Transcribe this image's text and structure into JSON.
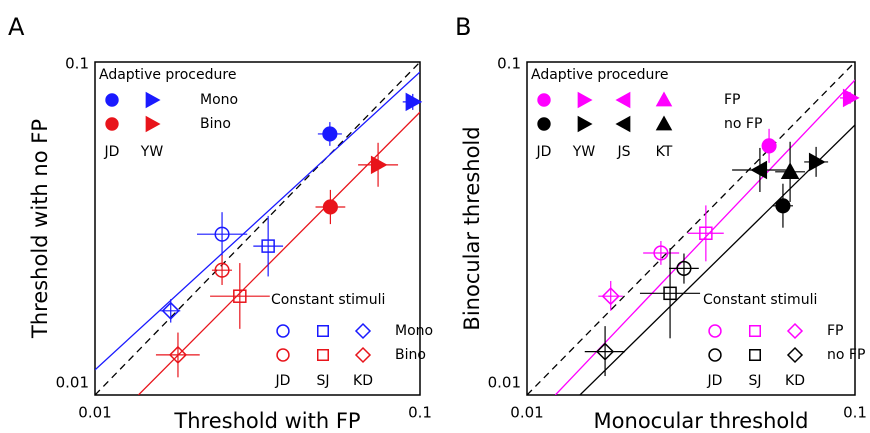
{
  "chart_data": [
    {
      "type": "scatter",
      "panel_label": "A",
      "xlabel": "Threshold with FP",
      "ylabel": "Threshold with no FP",
      "log_x": true,
      "log_y": true,
      "xlim": [
        0.01,
        0.1
      ],
      "ylim": [
        0.01,
        0.1
      ],
      "xticks": [
        0.01,
        0.1
      ],
      "yticks": [
        0.01,
        0.1
      ],
      "lines": [
        {
          "x": [
            0.01,
            0.1
          ],
          "y": [
            0.01,
            0.1
          ],
          "color": "#000000",
          "dashed": true
        },
        {
          "x": [
            0.01,
            0.1
          ],
          "y": [
            0.0119,
            0.0933
          ],
          "color": "#1a1aff",
          "dashed": false
        },
        {
          "x": [
            0.0136,
            0.1
          ],
          "y": [
            0.01,
            0.0707
          ],
          "color": "#e8141b",
          "dashed": false
        }
      ],
      "points": [
        {
          "x": 0.0528,
          "y": 0.0608,
          "xerr": [
            0.0485,
            0.0575
          ],
          "yerr": [
            0.056,
            0.066
          ],
          "color": "#1a1aff",
          "marker": "circle",
          "filled": true
        },
        {
          "x": 0.095,
          "y": 0.0759,
          "xerr": [
            0.0885,
            0.1
          ],
          "yerr": [
            0.0718,
            0.0802
          ],
          "color": "#1a1aff",
          "marker": "triangle-right",
          "filled": true
        },
        {
          "x": 0.053,
          "y": 0.0367,
          "xerr": [
            0.0477,
            0.0589
          ],
          "yerr": [
            0.0326,
            0.0413
          ],
          "color": "#e8141b",
          "marker": "circle",
          "filled": true
        },
        {
          "x": 0.0743,
          "y": 0.0491,
          "xerr": [
            0.0645,
            0.0856
          ],
          "yerr": [
            0.0422,
            0.0572
          ],
          "color": "#e8141b",
          "marker": "triangle-right",
          "filled": true
        },
        {
          "x": 0.0246,
          "y": 0.0304,
          "xerr": [
            0.0206,
            0.0294
          ],
          "yerr": [
            0.0261,
            0.0354
          ],
          "color": "#1a1aff",
          "marker": "circle",
          "filled": false
        },
        {
          "x": 0.0341,
          "y": 0.028,
          "xerr": [
            0.0307,
            0.0379
          ],
          "yerr": [
            0.0227,
            0.0345
          ],
          "color": "#1a1aff",
          "marker": "square",
          "filled": false
        },
        {
          "x": 0.0171,
          "y": 0.0179,
          "xerr": [
            0.0159,
            0.0183
          ],
          "yerr": [
            0.0165,
            0.0194
          ],
          "color": "#1a1aff",
          "marker": "diamond",
          "filled": false
        },
        {
          "x": 0.0246,
          "y": 0.0237,
          "xerr": [
            0.0229,
            0.0264
          ],
          "yerr": [
            0.0214,
            0.0263
          ],
          "color": "#e8141b",
          "marker": "circle",
          "filled": false
        },
        {
          "x": 0.0279,
          "y": 0.0198,
          "xerr": [
            0.0226,
            0.0345
          ],
          "yerr": [
            0.0158,
            0.0249
          ],
          "color": "#e8141b",
          "marker": "square",
          "filled": false
        },
        {
          "x": 0.018,
          "y": 0.0132,
          "xerr": [
            0.0154,
            0.021
          ],
          "yerr": [
            0.0113,
            0.0154
          ],
          "color": "#e8141b",
          "marker": "diamond",
          "filled": false
        }
      ],
      "adaptive_legend": {
        "title": "Adaptive procedure",
        "labels": [
          "Mono",
          "Bino"
        ],
        "colors": [
          "#1a1aff",
          "#e8141b"
        ],
        "subjects": [
          "JD",
          "YW"
        ],
        "markers": [
          "circle",
          "triangle-right"
        ],
        "filled": true
      },
      "constant_legend": {
        "title": "Constant stimuli",
        "labels": [
          "Mono",
          "Bino"
        ],
        "colors": [
          "#1a1aff",
          "#e8141b"
        ],
        "subjects": [
          "JD",
          "SJ",
          "KD"
        ],
        "markers": [
          "circle",
          "square",
          "diamond"
        ],
        "filled": false
      }
    },
    {
      "type": "scatter",
      "panel_label": "B",
      "xlabel": "Monocular threshold",
      "ylabel": "Binocular threshold",
      "log_x": true,
      "log_y": true,
      "xlim": [
        0.01,
        0.1
      ],
      "ylim": [
        0.01,
        0.1
      ],
      "xticks": [
        0.01,
        0.1
      ],
      "yticks": [
        0.01,
        0.1
      ],
      "lines": [
        {
          "x": [
            0.01,
            0.1
          ],
          "y": [
            0.01,
            0.1
          ],
          "color": "#000000",
          "dashed": true
        },
        {
          "x": [
            0.0122,
            0.1
          ],
          "y": [
            0.01,
            0.0883
          ],
          "color": "#ff00ff",
          "dashed": false
        },
        {
          "x": [
            0.0145,
            0.1
          ],
          "y": [
            0.01,
            0.0647
          ],
          "color": "#000000",
          "dashed": false
        }
      ],
      "points": [
        {
          "x": 0.0547,
          "y": 0.056,
          "xerr": [
            0.0532,
            0.0562
          ],
          "yerr": [
            0.0498,
            0.063
          ],
          "color": "#ff00ff",
          "marker": "circle",
          "filled": true
        },
        {
          "x": 0.0966,
          "y": 0.078,
          "xerr": [
            0.09,
            0.1
          ],
          "yerr": [
            0.0749,
            0.0813
          ],
          "color": "#ff00ff",
          "marker": "triangle-right",
          "filled": true
        },
        {
          "x": 0.0603,
          "y": 0.037,
          "xerr": [
            0.0562,
            0.0647
          ],
          "yerr": [
            0.0318,
            0.0431
          ],
          "color": "#000000",
          "marker": "circle",
          "filled": true
        },
        {
          "x": 0.0761,
          "y": 0.0501,
          "xerr": [
            0.07,
            0.0828
          ],
          "yerr": [
            0.0452,
            0.0556
          ],
          "color": "#000000",
          "marker": "triangle-right",
          "filled": true
        },
        {
          "x": 0.0513,
          "y": 0.0474,
          "xerr": [
            0.0422,
            0.0624
          ],
          "yerr": [
            0.0407,
            0.0552
          ],
          "color": "#000000",
          "marker": "triangle-left",
          "filled": true
        },
        {
          "x": 0.0634,
          "y": 0.0468,
          "xerr": [
            0.0571,
            0.0704
          ],
          "yerr": [
            0.038,
            0.0576
          ],
          "color": "#000000",
          "marker": "triangle-up",
          "filled": true
        },
        {
          "x": 0.0256,
          "y": 0.0267,
          "xerr": [
            0.0226,
            0.0291
          ],
          "yerr": [
            0.0246,
            0.029
          ],
          "color": "#ff00ff",
          "marker": "circle",
          "filled": false
        },
        {
          "x": 0.0351,
          "y": 0.0306,
          "xerr": [
            0.0309,
            0.0398
          ],
          "yerr": [
            0.0252,
            0.0371
          ],
          "color": "#ff00ff",
          "marker": "square",
          "filled": false
        },
        {
          "x": 0.018,
          "y": 0.0198,
          "xerr": [
            0.0165,
            0.0196
          ],
          "yerr": [
            0.0179,
            0.022
          ],
          "color": "#ff00ff",
          "marker": "diamond",
          "filled": false
        },
        {
          "x": 0.0301,
          "y": 0.024,
          "xerr": [
            0.0271,
            0.0334
          ],
          "yerr": [
            0.0216,
            0.0266
          ],
          "color": "#000000",
          "marker": "circle",
          "filled": false
        },
        {
          "x": 0.0273,
          "y": 0.0202,
          "xerr": [
            0.0221,
            0.0337
          ],
          "yerr": [
            0.0148,
            0.0276
          ],
          "color": "#000000",
          "marker": "square",
          "filled": false
        },
        {
          "x": 0.0173,
          "y": 0.0135,
          "xerr": [
            0.015,
            0.0199
          ],
          "yerr": [
            0.0114,
            0.0161
          ],
          "color": "#000000",
          "marker": "diamond",
          "filled": false
        }
      ],
      "adaptive_legend": {
        "title": "Adaptive procedure",
        "labels": [
          "FP",
          "no FP"
        ],
        "colors": [
          "#ff00ff",
          "#000000"
        ],
        "subjects": [
          "JD",
          "YW",
          "JS",
          "KT"
        ],
        "markers": [
          "circle",
          "triangle-right",
          "triangle-left",
          "triangle-up"
        ],
        "filled": true
      },
      "constant_legend": {
        "title": "Constant stimuli",
        "labels": [
          "FP",
          "no FP"
        ],
        "colors": [
          "#ff00ff",
          "#000000"
        ],
        "subjects": [
          "JD",
          "SJ",
          "KD"
        ],
        "markers": [
          "circle",
          "square",
          "diamond"
        ],
        "filled": false
      }
    }
  ]
}
